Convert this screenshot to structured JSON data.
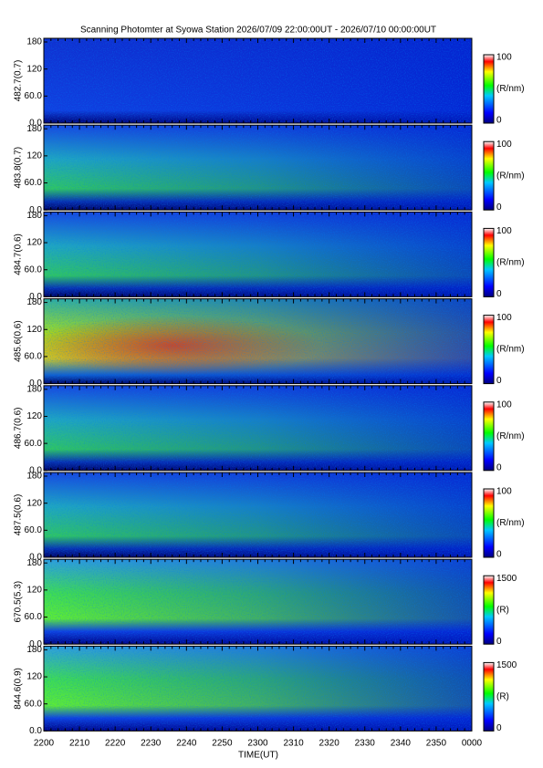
{
  "header": {
    "title": "Scanning Photomter at Syowa Station 2026/07/09 22:00:00UT - 2026/07/10 00:00:00UT"
  },
  "yticks": [
    "0.0",
    "60.0",
    "120",
    "180"
  ],
  "xticks": [
    "2200",
    "2210",
    "2220",
    "2230",
    "2240",
    "2250",
    "2300",
    "2310",
    "2320",
    "2330",
    "2340",
    "2350",
    "0000"
  ],
  "xlabel": "TIME(UT)",
  "panels": [
    {
      "label": "482.7(0.7)",
      "cmin": "0",
      "cmax": "100",
      "unit": "(R/nm)"
    },
    {
      "label": "483.8(0.7)",
      "cmin": "0",
      "cmax": "100",
      "unit": "(R/nm)"
    },
    {
      "label": "484.7(0.6)",
      "cmin": "0",
      "cmax": "100",
      "unit": "(R/nm)"
    },
    {
      "label": "485.6(0.6)",
      "cmin": "0",
      "cmax": "100",
      "unit": "(R/nm)"
    },
    {
      "label": "486.7(0.6)",
      "cmin": "0",
      "cmax": "100",
      "unit": "(R/nm)"
    },
    {
      "label": "487.5(0.6)",
      "cmin": "0",
      "cmax": "100",
      "unit": "(R/nm)"
    },
    {
      "label": "670.5(5.3)",
      "cmin": "0",
      "cmax": "1500",
      "unit": "(R)"
    },
    {
      "label": "844.6(0.9)",
      "cmin": "0",
      "cmax": "1500",
      "unit": "(R)"
    }
  ]
}
